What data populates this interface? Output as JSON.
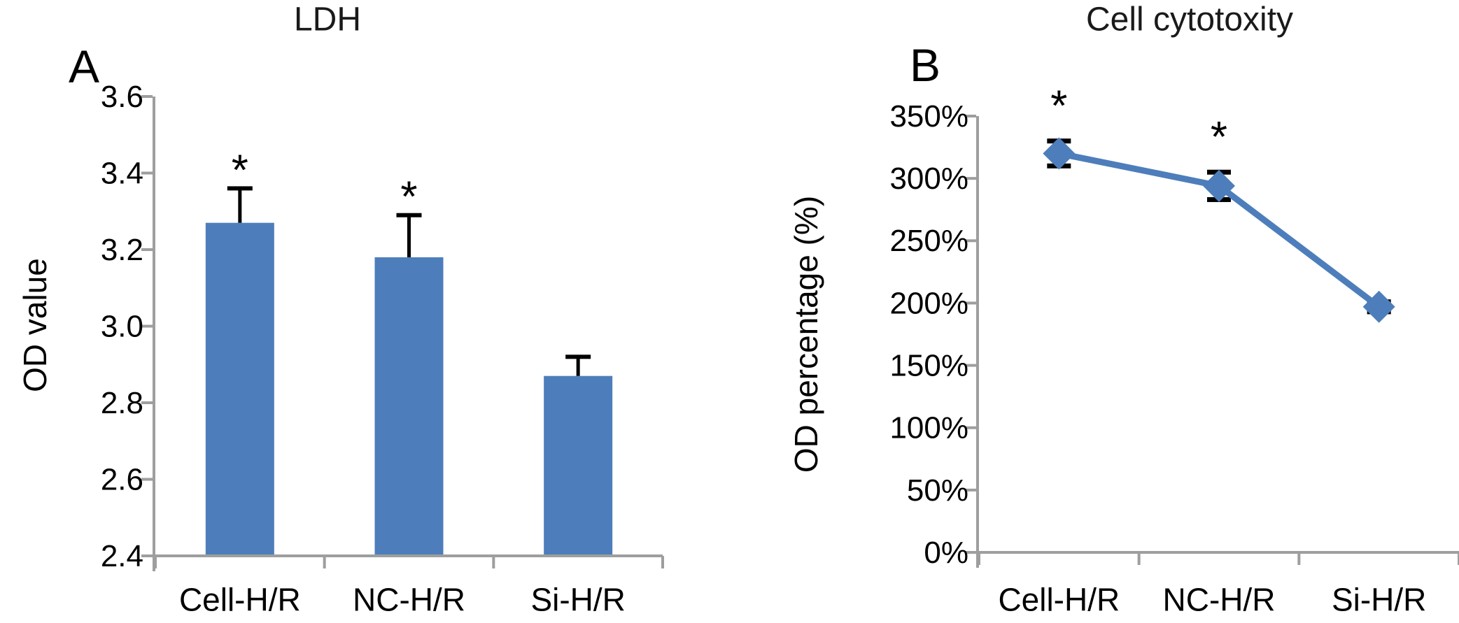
{
  "figure": {
    "background": "#ffffff",
    "description_labels": {
      "panel_a_letter": "A",
      "panel_b_letter": "B"
    }
  },
  "colors": {
    "series_blue": "#4D7EBB",
    "axis_gray": "#9E9E9E",
    "error_bar_black": "#000000",
    "text_black": "#000000"
  },
  "panels": [
    {
      "letter": "A",
      "title": "LDH",
      "y_axis_label": "OD value"
    },
    {
      "letter": "B",
      "title": "Cell cytotoxity",
      "y_axis_label": "OD percentage (%)"
    }
  ],
  "chart_data": [
    {
      "type": "bar",
      "panel": "A",
      "title": "LDH",
      "ylabel": "OD value",
      "xlabel": "",
      "categories": [
        "Cell-H/R",
        "NC-H/R",
        "Si-H/R"
      ],
      "values": [
        3.27,
        3.18,
        2.87
      ],
      "error_up": [
        0.09,
        0.11,
        0.05
      ],
      "significance": [
        "*",
        "*",
        ""
      ],
      "ylim": [
        2.4,
        3.6
      ],
      "ytick_step": 0.2,
      "ytick_labels": [
        "2.4",
        "2.6",
        "2.8",
        "3.0",
        "3.2",
        "3.4",
        "3.6"
      ],
      "grid": false,
      "legend": null,
      "bar_color": "#4D7EBB"
    },
    {
      "type": "line",
      "panel": "B",
      "title": "Cell cytotoxity",
      "ylabel": "OD percentage (%)",
      "xlabel": "",
      "categories": [
        "Cell-H/R",
        "NC-H/R",
        "Si-H/R"
      ],
      "values": [
        320,
        294,
        197
      ],
      "error_up": [
        10,
        11,
        4
      ],
      "error_down": [
        10,
        11,
        4
      ],
      "significance": [
        "*",
        "*",
        ""
      ],
      "ylim": [
        0,
        350
      ],
      "ytick_step": 50,
      "ytick_labels": [
        "0%",
        "50%",
        "100%",
        "150%",
        "200%",
        "250%",
        "300%",
        "350%"
      ],
      "grid": false,
      "legend": null,
      "marker": "diamond",
      "line_color": "#4D7EBB"
    }
  ]
}
